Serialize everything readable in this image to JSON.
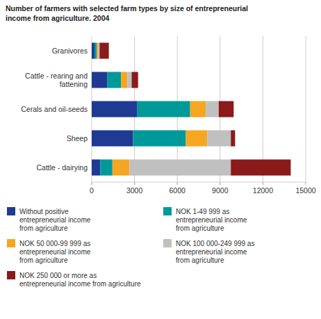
{
  "chart_data": {
    "type": "bar",
    "orientation": "horizontal",
    "stacked": true,
    "title": "Number of farmers with selected farm types by size of entrepreneurial\nincome from agriculture. 2004",
    "categories": [
      "Granivores",
      "Cattle - rearing and\nfattening",
      "Cerals and oil-seeds",
      "Sheep",
      "Cattle - dairying"
    ],
    "series": [
      {
        "name": "Without positive\nentrepreneurial income\nfrom agriculture",
        "color": "#1f3a93",
        "values": [
          200,
          1100,
          3200,
          2900,
          600
        ]
      },
      {
        "name": "NOK 1-49 999 as\nentrepreneurial income\nfrom agriculture",
        "color": "#009999",
        "values": [
          150,
          950,
          3700,
          3700,
          850
        ]
      },
      {
        "name": "NOK 50 000-99 999 as\nentrepreneurial income\nfrom agriculture",
        "color": "#f5a623",
        "values": [
          100,
          450,
          1100,
          1500,
          1200
        ]
      },
      {
        "name": "NOK 100 000-249 999 as\nentrepreneurial income\nfrom agriculture",
        "color": "#c0c0c0",
        "values": [
          100,
          300,
          900,
          1650,
          7100
        ]
      },
      {
        "name": "NOK 250 000 or more as\nentrepreneurial income from agriculture",
        "color": "#8b1a1a",
        "values": [
          650,
          450,
          1050,
          300,
          4200
        ]
      }
    ],
    "xlim": [
      0,
      15000
    ],
    "xticks": [
      0,
      3000,
      6000,
      9000,
      12000,
      15000
    ],
    "grid": true,
    "legend": "bottom"
  }
}
